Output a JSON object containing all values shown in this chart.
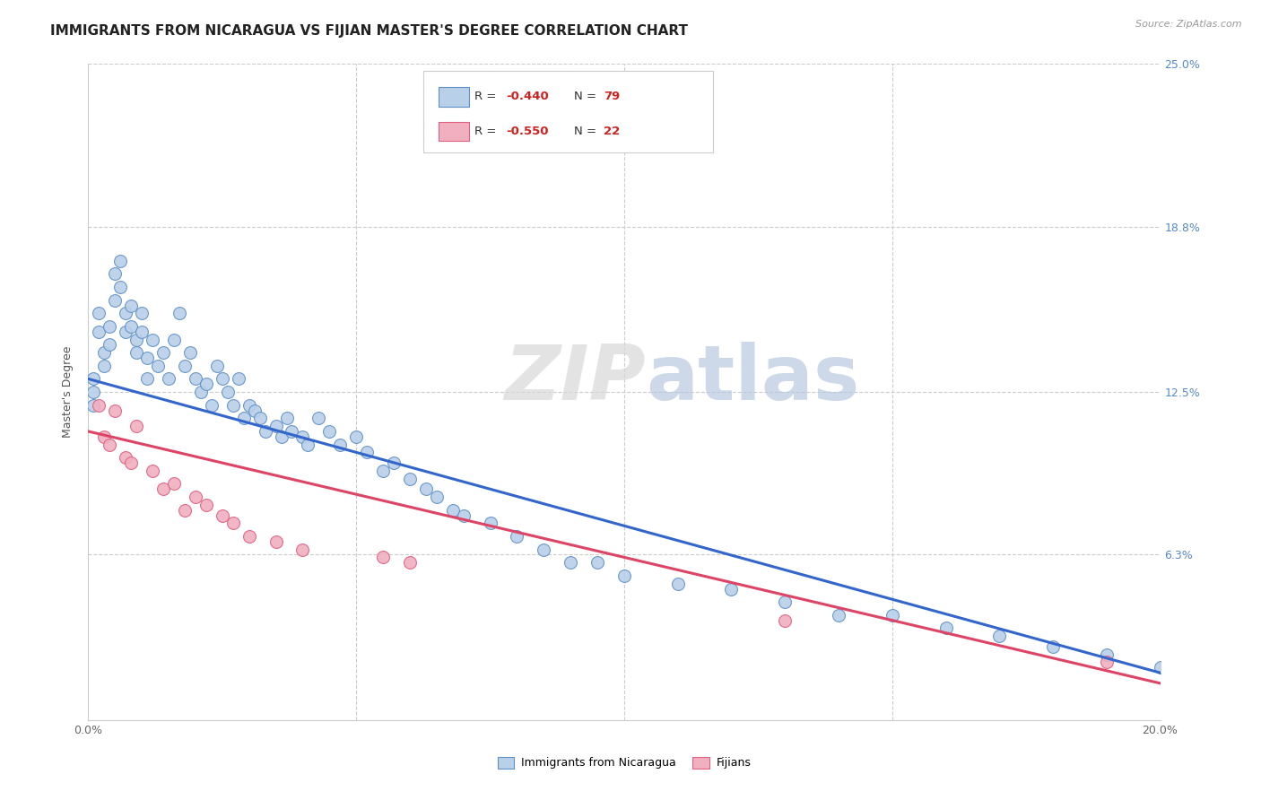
{
  "title": "IMMIGRANTS FROM NICARAGUA VS FIJIAN MASTER'S DEGREE CORRELATION CHART",
  "source": "Source: ZipAtlas.com",
  "ylabel_label": "Master's Degree",
  "xlim": [
    0.0,
    0.2
  ],
  "ylim": [
    0.0,
    0.25
  ],
  "blue_R": -0.44,
  "blue_N": 79,
  "pink_R": -0.55,
  "pink_N": 22,
  "blue_color": "#b8d0e8",
  "pink_color": "#f0b0c0",
  "blue_edge_color": "#6090c8",
  "pink_edge_color": "#e06080",
  "blue_line_color": "#3366cc",
  "pink_line_color": "#dd4466",
  "watermark_zip": "ZIP",
  "watermark_atlas": "atlas",
  "blue_line_start_y": 0.13,
  "blue_line_end_y": 0.018,
  "pink_line_start_y": 0.11,
  "pink_line_end_y": 0.014,
  "blue_scatter_x": [
    0.001,
    0.001,
    0.001,
    0.002,
    0.002,
    0.003,
    0.003,
    0.004,
    0.004,
    0.005,
    0.005,
    0.006,
    0.006,
    0.007,
    0.007,
    0.008,
    0.008,
    0.009,
    0.009,
    0.01,
    0.01,
    0.011,
    0.011,
    0.012,
    0.013,
    0.014,
    0.015,
    0.016,
    0.017,
    0.018,
    0.019,
    0.02,
    0.021,
    0.022,
    0.023,
    0.024,
    0.025,
    0.026,
    0.027,
    0.028,
    0.029,
    0.03,
    0.031,
    0.032,
    0.033,
    0.035,
    0.036,
    0.037,
    0.038,
    0.04,
    0.041,
    0.043,
    0.045,
    0.047,
    0.05,
    0.052,
    0.055,
    0.057,
    0.06,
    0.063,
    0.065,
    0.068,
    0.07,
    0.075,
    0.08,
    0.085,
    0.09,
    0.095,
    0.1,
    0.11,
    0.12,
    0.13,
    0.14,
    0.15,
    0.16,
    0.17,
    0.18,
    0.19,
    0.2
  ],
  "blue_scatter_y": [
    0.13,
    0.125,
    0.12,
    0.155,
    0.148,
    0.14,
    0.135,
    0.15,
    0.143,
    0.17,
    0.16,
    0.175,
    0.165,
    0.155,
    0.148,
    0.158,
    0.15,
    0.145,
    0.14,
    0.155,
    0.148,
    0.13,
    0.138,
    0.145,
    0.135,
    0.14,
    0.13,
    0.145,
    0.155,
    0.135,
    0.14,
    0.13,
    0.125,
    0.128,
    0.12,
    0.135,
    0.13,
    0.125,
    0.12,
    0.13,
    0.115,
    0.12,
    0.118,
    0.115,
    0.11,
    0.112,
    0.108,
    0.115,
    0.11,
    0.108,
    0.105,
    0.115,
    0.11,
    0.105,
    0.108,
    0.102,
    0.095,
    0.098,
    0.092,
    0.088,
    0.085,
    0.08,
    0.078,
    0.075,
    0.07,
    0.065,
    0.06,
    0.06,
    0.055,
    0.052,
    0.05,
    0.045,
    0.04,
    0.04,
    0.035,
    0.032,
    0.028,
    0.025,
    0.02
  ],
  "pink_scatter_x": [
    0.002,
    0.003,
    0.004,
    0.005,
    0.007,
    0.008,
    0.009,
    0.012,
    0.014,
    0.016,
    0.018,
    0.02,
    0.022,
    0.025,
    0.027,
    0.03,
    0.035,
    0.04,
    0.055,
    0.06,
    0.13,
    0.19
  ],
  "pink_scatter_y": [
    0.12,
    0.108,
    0.105,
    0.118,
    0.1,
    0.098,
    0.112,
    0.095,
    0.088,
    0.09,
    0.08,
    0.085,
    0.082,
    0.078,
    0.075,
    0.07,
    0.068,
    0.065,
    0.062,
    0.06,
    0.038,
    0.022
  ],
  "legend_blue_label": "Immigrants from Nicaragua",
  "legend_pink_label": "Fijians",
  "marker_size": 100,
  "title_fontsize": 11,
  "axis_fontsize": 9,
  "tick_fontsize": 9
}
